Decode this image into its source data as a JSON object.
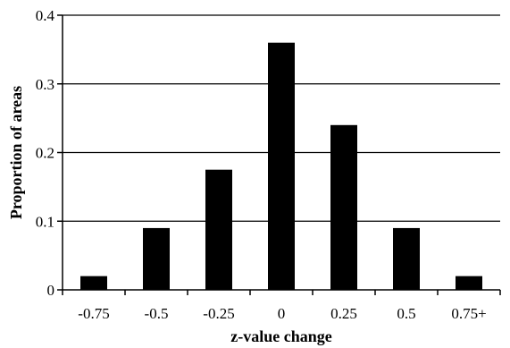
{
  "chart_data": {
    "type": "bar",
    "categories": [
      "-0.75",
      "-0.5",
      "-0.25",
      "0",
      "0.25",
      "0.5",
      "0.75+"
    ],
    "values": [
      0.02,
      0.09,
      0.175,
      0.36,
      0.24,
      0.09,
      0.02
    ],
    "xlabel": "z-value change",
    "ylabel": "Proportion of areas",
    "ylim": [
      0,
      0.4
    ],
    "yticks": [
      "0",
      "0.1",
      "0.2",
      "0.3",
      "0.4"
    ],
    "grid": "horizontal",
    "bar_color": "#000000"
  }
}
